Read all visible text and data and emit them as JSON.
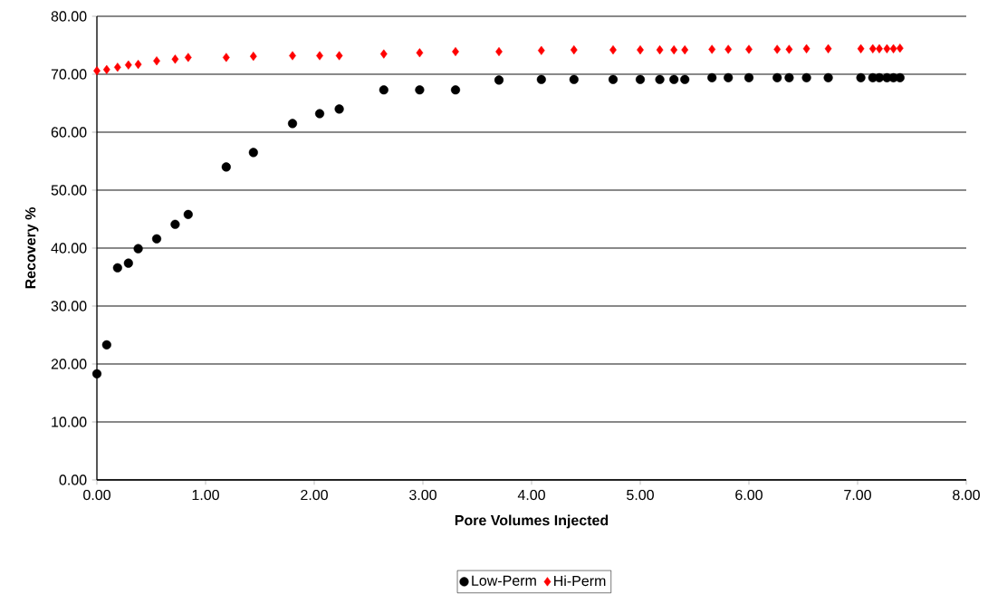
{
  "chart_data": {
    "type": "scatter",
    "xlabel": "Pore Volumes Injected",
    "ylabel": "Recovery %",
    "x": [
      0.0,
      0.09,
      0.19,
      0.29,
      0.38,
      0.55,
      0.72,
      0.84,
      1.19,
      1.44,
      1.8,
      2.05,
      2.23,
      2.64,
      2.97,
      3.3,
      3.7,
      4.09,
      4.39,
      4.75,
      5.0,
      5.18,
      5.31,
      5.41,
      5.66,
      5.81,
      6.0,
      6.26,
      6.37,
      6.53,
      6.73,
      7.03,
      7.14,
      7.2,
      7.27,
      7.33,
      7.39
    ],
    "series": [
      {
        "name": "Low-Perm",
        "color": "#000000",
        "marker": "circle",
        "values": [
          18.3,
          23.3,
          36.6,
          37.4,
          39.9,
          41.6,
          44.1,
          45.8,
          54.0,
          56.5,
          61.5,
          63.2,
          64.0,
          67.3,
          67.3,
          67.3,
          69.0,
          69.1,
          69.1,
          69.1,
          69.1,
          69.1,
          69.1,
          69.1,
          69.4,
          69.4,
          69.4,
          69.4,
          69.4,
          69.4,
          69.4,
          69.4,
          69.4,
          69.4,
          69.4,
          69.4,
          69.4
        ]
      },
      {
        "name": "Hi-Perm",
        "color": "#ff0000",
        "marker": "diamond",
        "values": [
          70.6,
          70.8,
          71.2,
          71.6,
          71.7,
          72.3,
          72.6,
          72.9,
          72.9,
          73.1,
          73.2,
          73.2,
          73.2,
          73.5,
          73.7,
          73.9,
          73.9,
          74.1,
          74.2,
          74.2,
          74.2,
          74.2,
          74.2,
          74.2,
          74.3,
          74.3,
          74.3,
          74.3,
          74.3,
          74.4,
          74.4,
          74.4,
          74.4,
          74.4,
          74.4,
          74.4,
          74.5
        ]
      }
    ],
    "xlim": [
      0,
      8
    ],
    "ylim": [
      0,
      80
    ],
    "xticks": [
      {
        "value": 0,
        "label": "0.00"
      },
      {
        "value": 1,
        "label": "1.00"
      },
      {
        "value": 2,
        "label": "2.00"
      },
      {
        "value": 3,
        "label": "3.00"
      },
      {
        "value": 4,
        "label": "4.00"
      },
      {
        "value": 5,
        "label": "5.00"
      },
      {
        "value": 6,
        "label": "6.00"
      },
      {
        "value": 7,
        "label": "7.00"
      },
      {
        "value": 8,
        "label": "8.00"
      }
    ],
    "yticks": [
      {
        "value": 0,
        "label": "0.00"
      },
      {
        "value": 10,
        "label": "10.00"
      },
      {
        "value": 20,
        "label": "20.00"
      },
      {
        "value": 30,
        "label": "30.00"
      },
      {
        "value": 40,
        "label": "40.00"
      },
      {
        "value": 50,
        "label": "50.00"
      },
      {
        "value": 60,
        "label": "60.00"
      },
      {
        "value": 70,
        "label": "70.00"
      },
      {
        "value": 80,
        "label": "80.00"
      }
    ],
    "grid": "y",
    "legend": "bottom"
  }
}
